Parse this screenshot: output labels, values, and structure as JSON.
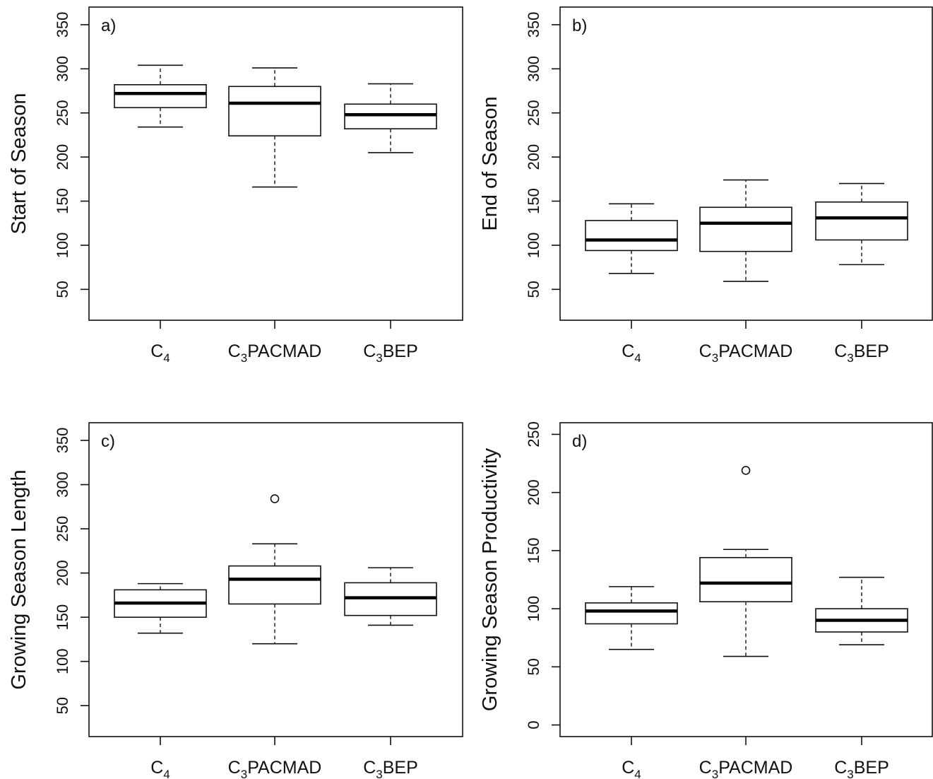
{
  "chart_data": [
    {
      "type": "box",
      "panel_label": "a)",
      "ylabel": "Start of Season",
      "ylim": [
        15,
        370
      ],
      "yticks": [
        50,
        100,
        150,
        200,
        250,
        300,
        350
      ],
      "categories": [
        {
          "base": "C",
          "sub": "4",
          "rest": ""
        },
        {
          "base": "C",
          "sub": "3",
          "rest": "PACMAD"
        },
        {
          "base": "C",
          "sub": "3",
          "rest": "BEP"
        }
      ],
      "boxes": [
        {
          "min": 234,
          "q1": 256,
          "median": 272,
          "q3": 282,
          "max": 304,
          "outliers": []
        },
        {
          "min": 166,
          "q1": 224,
          "median": 261,
          "q3": 280,
          "max": 301,
          "outliers": []
        },
        {
          "min": 205,
          "q1": 232,
          "median": 248,
          "q3": 260,
          "max": 283,
          "outliers": []
        }
      ]
    },
    {
      "type": "box",
      "panel_label": "b)",
      "ylabel": "End of Season",
      "ylim": [
        15,
        370
      ],
      "yticks": [
        50,
        100,
        150,
        200,
        250,
        300,
        350
      ],
      "categories": [
        {
          "base": "C",
          "sub": "4",
          "rest": ""
        },
        {
          "base": "C",
          "sub": "3",
          "rest": "PACMAD"
        },
        {
          "base": "C",
          "sub": "3",
          "rest": "BEP"
        }
      ],
      "boxes": [
        {
          "min": 68,
          "q1": 94,
          "median": 106,
          "q3": 128,
          "max": 147,
          "outliers": []
        },
        {
          "min": 59,
          "q1": 93,
          "median": 125,
          "q3": 143,
          "max": 174,
          "outliers": []
        },
        {
          "min": 78,
          "q1": 106,
          "median": 131,
          "q3": 149,
          "max": 170,
          "outliers": []
        }
      ]
    },
    {
      "type": "box",
      "panel_label": "c)",
      "ylabel": "Growing Season Length",
      "ylim": [
        15,
        370
      ],
      "yticks": [
        50,
        100,
        150,
        200,
        250,
        300,
        350
      ],
      "categories": [
        {
          "base": "C",
          "sub": "4",
          "rest": ""
        },
        {
          "base": "C",
          "sub": "3",
          "rest": "PACMAD"
        },
        {
          "base": "C",
          "sub": "3",
          "rest": "BEP"
        }
      ],
      "boxes": [
        {
          "min": 132,
          "q1": 150,
          "median": 166,
          "q3": 181,
          "max": 188,
          "outliers": []
        },
        {
          "min": 120,
          "q1": 165,
          "median": 193,
          "q3": 208,
          "max": 233,
          "outliers": [
            284
          ]
        },
        {
          "min": 141,
          "q1": 152,
          "median": 172,
          "q3": 189,
          "max": 206,
          "outliers": []
        }
      ]
    },
    {
      "type": "box",
      "panel_label": "d)",
      "ylabel": "Growing Season Productivity",
      "ylim": [
        -10,
        260
      ],
      "yticks": [
        0,
        50,
        100,
        150,
        200,
        250
      ],
      "categories": [
        {
          "base": "C",
          "sub": "4",
          "rest": ""
        },
        {
          "base": "C",
          "sub": "3",
          "rest": "PACMAD"
        },
        {
          "base": "C",
          "sub": "3",
          "rest": "BEP"
        }
      ],
      "boxes": [
        {
          "min": 65,
          "q1": 87,
          "median": 98,
          "q3": 105,
          "max": 119,
          "outliers": []
        },
        {
          "min": 59,
          "q1": 106,
          "median": 122,
          "q3": 144,
          "max": 151,
          "outliers": [
            219
          ]
        },
        {
          "min": 69,
          "q1": 80,
          "median": 90,
          "q3": 100,
          "max": 127,
          "outliers": []
        }
      ]
    }
  ]
}
